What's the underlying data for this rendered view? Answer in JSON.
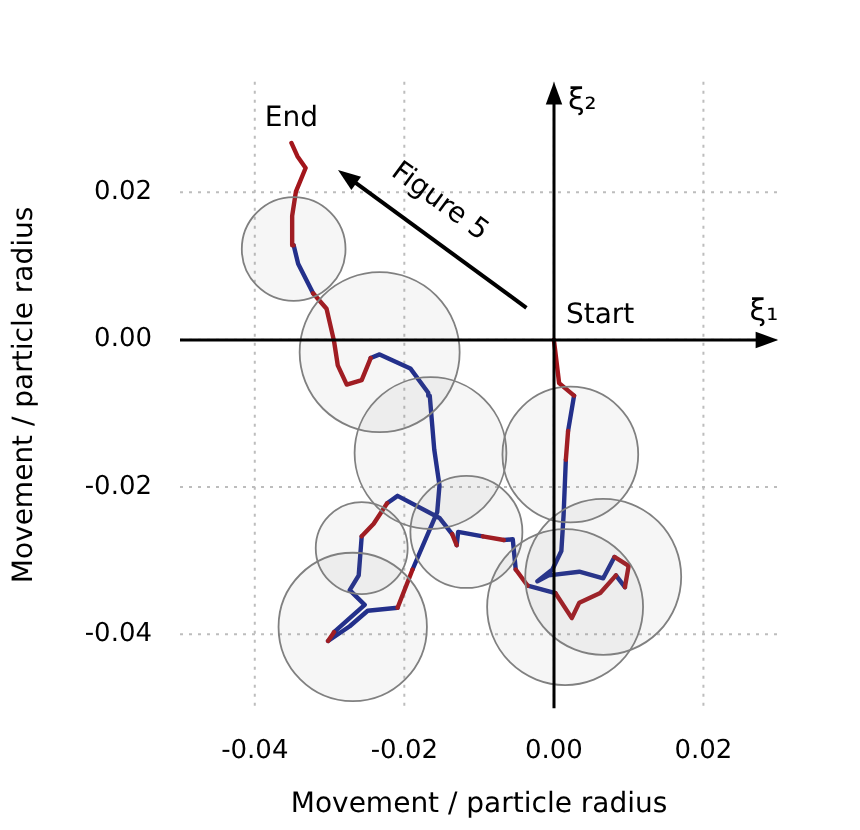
{
  "chart_data": {
    "type": "line",
    "xlabel": "Movement / particle radius",
    "ylabel": "Movement / particle radius",
    "xlim": [
      -0.05,
      0.03
    ],
    "ylim": [
      -0.05,
      0.035
    ],
    "xticks": [
      -0.04,
      -0.02,
      {
        "value": 0,
        "label": "0.00"
      },
      0.02
    ],
    "yticks": [
      -0.04,
      -0.02,
      {
        "value": 0,
        "label": "0.00"
      },
      0.02
    ],
    "grid": true,
    "legend": false,
    "annotations": [
      {
        "text": "Start",
        "x": 0,
        "y": 0
      },
      {
        "text": "End",
        "x": -0.0351,
        "y": 0.0267
      },
      "ξ₁",
      "ξ₂",
      "Figure 5"
    ],
    "series": [
      {
        "color": "#1c2a8c",
        "marker": "none",
        "line_style": "solid",
        "x": [
          0.0027,
          0.0019,
          null,
          0.0016,
          0.0013,
          0.001,
          -0.0002,
          -0.0022,
          -0.0007,
          0.0034,
          0.0066,
          0.0081,
          null,
          0.0095,
          0.0083,
          null,
          0.0002,
          -0.0035,
          null,
          -0.0051,
          -0.0055,
          -0.0067,
          null,
          -0.0095,
          -0.0128,
          -0.013,
          null,
          -0.0136,
          -0.0153,
          -0.0209,
          -0.0223,
          null,
          -0.0257,
          -0.0261,
          -0.0273,
          -0.0253,
          -0.0273,
          -0.0294,
          null,
          -0.0302,
          -0.0273,
          -0.0249,
          -0.0209,
          null,
          -0.0189,
          -0.0156,
          -0.0153,
          -0.016,
          -0.0166,
          -0.0168,
          -0.0192,
          -0.0233,
          -0.0245,
          null,
          -0.0322,
          -0.0342,
          -0.0348
        ],
        "values": [
          -0.0076,
          -0.0124,
          null,
          -0.0163,
          -0.0238,
          -0.0287,
          -0.0312,
          -0.0328,
          -0.032,
          -0.0315,
          -0.0324,
          -0.0295,
          null,
          -0.0336,
          -0.032,
          null,
          -0.0344,
          -0.0334,
          null,
          -0.0312,
          -0.0271,
          -0.0272,
          null,
          -0.0267,
          -0.0261,
          -0.0279,
          null,
          -0.0264,
          -0.0242,
          -0.0212,
          -0.0222,
          null,
          -0.0267,
          -0.032,
          -0.034,
          -0.036,
          -0.0378,
          -0.0397,
          null,
          -0.0409,
          -0.0389,
          -0.0368,
          -0.0364,
          null,
          -0.0312,
          -0.0234,
          -0.0198,
          -0.0149,
          -0.0076,
          -0.0072,
          -0.0039,
          -0.002,
          -0.0025,
          null,
          0.0063,
          0.0103,
          0.0128
        ]
      },
      {
        "color": "#a3161c",
        "marker": "none",
        "line_style": "solid",
        "x": [
          0,
          0.0007,
          0.0027,
          null,
          0.0019,
          0.0016,
          null,
          0.0081,
          0.01,
          0.0095,
          null,
          0.0083,
          0.0062,
          0.0034,
          0.0024,
          0.0002,
          null,
          -0.0035,
          -0.0051,
          null,
          -0.0067,
          -0.0095,
          null,
          -0.013,
          -0.0136,
          null,
          -0.0223,
          -0.0241,
          -0.0257,
          null,
          -0.0294,
          -0.0302,
          null,
          -0.0209,
          -0.0189,
          null,
          -0.0245,
          -0.0257,
          -0.0277,
          -0.0289,
          -0.0294,
          -0.0304,
          -0.0322,
          null,
          -0.0348,
          -0.035,
          -0.0345,
          -0.0332,
          -0.0343,
          -0.0351
        ],
        "values": [
          0,
          -0.0059,
          -0.0076,
          null,
          -0.0124,
          -0.0163,
          null,
          -0.0295,
          -0.0307,
          -0.0336,
          null,
          -0.032,
          -0.0344,
          -0.0357,
          -0.0378,
          -0.0344,
          null,
          -0.0334,
          -0.0312,
          null,
          -0.0272,
          -0.0267,
          null,
          -0.0279,
          -0.0264,
          null,
          -0.0222,
          -0.025,
          -0.0267,
          null,
          -0.0397,
          -0.0409,
          null,
          -0.0364,
          -0.0312,
          null,
          -0.0025,
          -0.0055,
          -0.0061,
          -0.0035,
          -0.0002,
          0.0042,
          0.0063,
          null,
          0.0128,
          0.0168,
          0.0201,
          0.0233,
          0.0249,
          0.0267
        ]
      },
      {
        "type": "bubble",
        "color": "#808080",
        "x": [
          -0.0348,
          -0.0233,
          -0.0165,
          0.0022,
          -0.0117,
          -0.0257,
          -0.0269,
          0.0015,
          0.0066
        ],
        "values": [
          0.0123,
          -0.0017,
          -0.0154,
          -0.0156,
          -0.0261,
          -0.0283,
          -0.039,
          -0.0363,
          -0.0322
        ],
        "sizes": [
          0.42,
          1,
          0.9,
          0.72,
          0.49,
          0.33,
          0.86,
          0.95,
          0.95
        ]
      }
    ]
  }
}
